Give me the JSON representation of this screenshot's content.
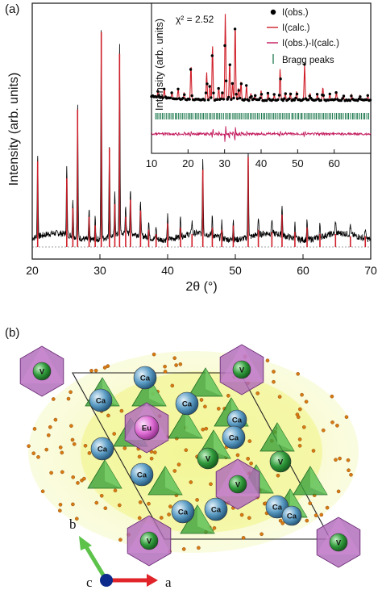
{
  "chart_data": {
    "type": "line",
    "panel_label": "(a)",
    "xlabel": "2θ (°)",
    "ylabel": "Intensity (arb. units)",
    "xlim": [
      20,
      70
    ],
    "x_ticks": [
      20,
      30,
      40,
      50,
      60,
      70
    ],
    "series": [
      {
        "name": "I(obs.)",
        "color": "#000000"
      },
      {
        "name": "I(calc.)",
        "color": "#d0202a"
      }
    ],
    "peaks": [
      {
        "x": 20.8,
        "y": 0.4
      },
      {
        "x": 25.1,
        "y": 0.32
      },
      {
        "x": 26.0,
        "y": 0.18
      },
      {
        "x": 26.7,
        "y": 0.64
      },
      {
        "x": 28.4,
        "y": 0.14
      },
      {
        "x": 29.3,
        "y": 0.1
      },
      {
        "x": 30.2,
        "y": 1.0
      },
      {
        "x": 31.4,
        "y": 0.46
      },
      {
        "x": 32.2,
        "y": 0.2
      },
      {
        "x": 32.9,
        "y": 0.9
      },
      {
        "x": 33.8,
        "y": 0.14
      },
      {
        "x": 34.5,
        "y": 0.22
      },
      {
        "x": 36.0,
        "y": 0.17
      },
      {
        "x": 37.2,
        "y": 0.08
      },
      {
        "x": 38.3,
        "y": 0.06
      },
      {
        "x": 40.0,
        "y": 0.11
      },
      {
        "x": 41.9,
        "y": 0.09
      },
      {
        "x": 43.6,
        "y": 0.06
      },
      {
        "x": 45.2,
        "y": 0.36
      },
      {
        "x": 46.6,
        "y": 0.09
      },
      {
        "x": 48.0,
        "y": 0.08
      },
      {
        "x": 49.7,
        "y": 0.1
      },
      {
        "x": 51.9,
        "y": 0.42
      },
      {
        "x": 53.4,
        "y": 0.08
      },
      {
        "x": 55.4,
        "y": 0.07
      },
      {
        "x": 56.9,
        "y": 0.15
      },
      {
        "x": 58.8,
        "y": 0.07
      },
      {
        "x": 60.6,
        "y": 0.09
      },
      {
        "x": 62.5,
        "y": 0.06
      },
      {
        "x": 64.8,
        "y": 0.06
      },
      {
        "x": 67.0,
        "y": 0.05
      },
      {
        "x": 69.2,
        "y": 0.05
      }
    ],
    "inset": {
      "xlabel": "",
      "ylabel": "Intensity (arb. units)",
      "xlim": [
        10,
        70
      ],
      "x_ticks": [
        10,
        20,
        30,
        40,
        50,
        60
      ],
      "chi_label": "χ² = 2.52",
      "legend": [
        "I(obs.)",
        "I(calc.)",
        "I(obs.)-I(calc.)",
        "Bragg peaks"
      ],
      "legend_colors": [
        "#000000",
        "#d0202a",
        "#c2185b",
        "#1f7a4f"
      ],
      "legend_position": "top-right"
    }
  },
  "structure": {
    "panel_label": "(b)",
    "atom_labels": {
      "ca": "Ca",
      "eu": "Eu",
      "v": "V"
    },
    "axes": {
      "a": "a",
      "b": "b",
      "c": "c"
    },
    "colors": {
      "ca": "#4e8fb8",
      "eu": "#d95fd0",
      "v_tetra": "#3ba13b",
      "polyhedra": "#b06aba",
      "oxygen": "#d97a12",
      "haze": "#eef28a"
    }
  }
}
